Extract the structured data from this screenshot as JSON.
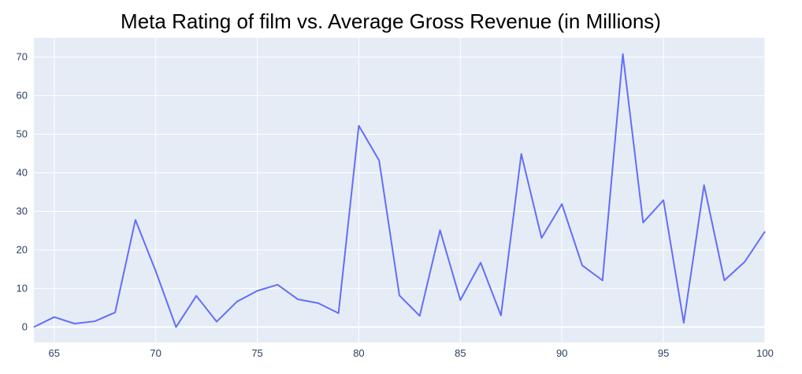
{
  "chart_data": {
    "type": "line",
    "title": "Meta Rating of film vs. Average Gross Revenue (in Millions)",
    "xlabel": "",
    "ylabel": "",
    "xlim": [
      64,
      100
    ],
    "ylim": [
      -4,
      75
    ],
    "x_ticks": [
      65,
      70,
      75,
      80,
      85,
      90,
      95,
      100
    ],
    "y_ticks": [
      0,
      10,
      20,
      30,
      40,
      50,
      60,
      70
    ],
    "grid": true,
    "legend": "none",
    "colors": {
      "line": "#636efa",
      "plot_bg": "#e5ecf6",
      "grid": "#ffffff",
      "zeroline": "#ffffff",
      "tick_text": "#2a3f5f"
    },
    "series": [
      {
        "x": [
          64,
          65,
          66,
          67,
          68,
          69,
          70,
          71,
          72,
          73,
          74,
          75,
          76,
          77,
          78,
          79,
          80,
          81,
          82,
          83,
          84,
          85,
          86,
          87,
          88,
          89,
          90,
          91,
          92,
          93,
          94,
          95,
          96,
          97,
          98,
          99,
          100
        ],
        "values": [
          0.0,
          2.6,
          0.9,
          1.5,
          3.8,
          27.8,
          14.5,
          0.0,
          8.1,
          1.4,
          6.6,
          9.4,
          11.0,
          7.2,
          6.2,
          3.6,
          52.2,
          43.2,
          8.2,
          2.9,
          25.1,
          7.0,
          16.7,
          3.0,
          44.9,
          23.1,
          31.9,
          16.0,
          12.1,
          70.8,
          27.1,
          32.9,
          1.1,
          36.8,
          12.1,
          16.9,
          24.8
        ]
      }
    ]
  }
}
